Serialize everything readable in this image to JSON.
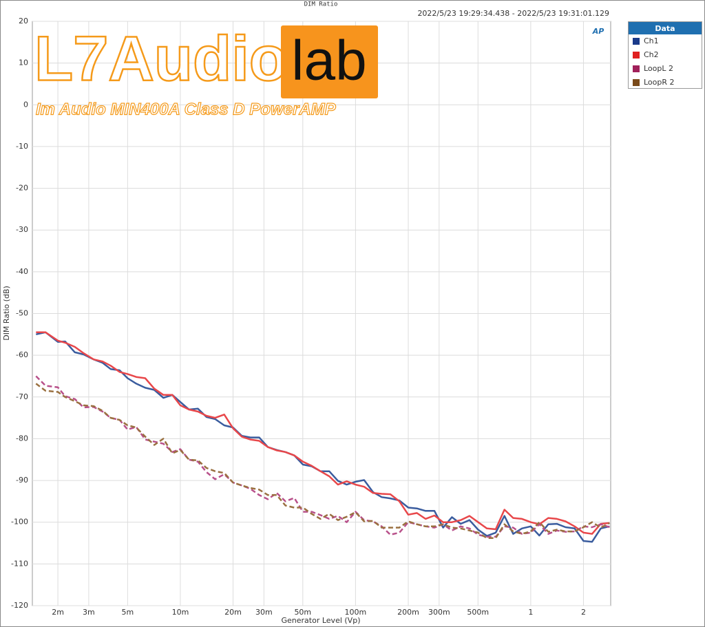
{
  "chart_data": {
    "type": "line",
    "title": "DIM Ratio",
    "subtitle": "2022/5/23 19:29:34.438 - 2022/5/23 19:31:01.129",
    "x_label": "Generator Level (Vp)",
    "y_label": "DIM Ratio (dB)",
    "legend_title": "Data",
    "legend_position": "outside-right",
    "annotations": [
      "L7Audio",
      "lab",
      "Im Audio MIN400A Class D PowerAMP",
      "AP"
    ],
    "xscale": "log",
    "grid": true,
    "xlim": [
      0.00143,
      2.86
    ],
    "ylim": [
      -120,
      20
    ],
    "xticks": [
      {
        "value": 0.002,
        "label": "2m"
      },
      {
        "value": 0.003,
        "label": "3m"
      },
      {
        "value": 0.005,
        "label": "5m"
      },
      {
        "value": 0.01,
        "label": "10m"
      },
      {
        "value": 0.02,
        "label": "20m"
      },
      {
        "value": 0.03,
        "label": "30m"
      },
      {
        "value": 0.05,
        "label": "50m"
      },
      {
        "value": 0.1,
        "label": "100m"
      },
      {
        "value": 0.2,
        "label": "200m"
      },
      {
        "value": 0.3,
        "label": "300m"
      },
      {
        "value": 0.5,
        "label": "500m"
      },
      1,
      2
    ],
    "yticks": [
      20,
      10,
      0,
      -10,
      -20,
      -30,
      -40,
      -50,
      -60,
      -70,
      -80,
      -90,
      -100,
      -110,
      -120
    ],
    "x": [
      0.0015,
      0.0017,
      0.002,
      0.0022,
      0.0025,
      0.0028,
      0.0032,
      0.0036,
      0.004,
      0.0045,
      0.005,
      0.0056,
      0.0063,
      0.0071,
      0.008,
      0.009,
      0.01,
      0.0112,
      0.0126,
      0.0141,
      0.0158,
      0.0178,
      0.02,
      0.0224,
      0.0251,
      0.0282,
      0.0316,
      0.0355,
      0.0398,
      0.0447,
      0.0501,
      0.0562,
      0.0631,
      0.0708,
      0.0794,
      0.0891,
      0.1,
      0.112,
      0.126,
      0.141,
      0.158,
      0.178,
      0.2,
      0.224,
      0.251,
      0.282,
      0.316,
      0.355,
      0.398,
      0.447,
      0.501,
      0.562,
      0.631,
      0.708,
      0.794,
      0.891,
      1,
      1.12,
      1.26,
      1.41,
      1.58,
      1.78,
      2,
      2.24,
      2.51,
      2.82
    ],
    "series": [
      {
        "name": "Ch1",
        "color": "#3a5c9e",
        "legend_color": "#1a3a8a",
        "style": "solid",
        "values": [
          -55,
          -54.5,
          -56.8,
          -56.7,
          -59.3,
          -59.8,
          -61,
          -61.8,
          -63.3,
          -63.6,
          -65.5,
          -66.8,
          -67.8,
          -68.3,
          -70.2,
          -69.5,
          -71.2,
          -73,
          -72.8,
          -74.8,
          -75.3,
          -76.8,
          -77.3,
          -79.3,
          -79.7,
          -79.7,
          -82,
          -82.7,
          -83.2,
          -84,
          -86.2,
          -86.6,
          -87.8,
          -87.8,
          -90.1,
          -91,
          -90.3,
          -89.9,
          -92.8,
          -94,
          -94.3,
          -94.8,
          -96.5,
          -96.7,
          -97.3,
          -97.3,
          -101.3,
          -98.8,
          -100.4,
          -99.5,
          -101.8,
          -103.3,
          -102.5,
          -98.5,
          -102.8,
          -101.5,
          -101,
          -103.2,
          -100.5,
          -100.4,
          -101.2,
          -101.5,
          -104.5,
          -104.7,
          -101.5,
          -101
        ]
      },
      {
        "name": "Ch2",
        "color": "#e8474a",
        "legend_color": "#e02020",
        "style": "solid",
        "values": [
          -54.5,
          -54.5,
          -56.5,
          -57,
          -58,
          -59.5,
          -61,
          -61.5,
          -62.5,
          -64,
          -64.5,
          -65.2,
          -65.5,
          -68,
          -69.5,
          -69.5,
          -72,
          -73,
          -73.5,
          -74.5,
          -75,
          -74.2,
          -77.5,
          -79.5,
          -80.2,
          -80.5,
          -82,
          -82.8,
          -83.2,
          -84,
          -85.5,
          -86.5,
          -87.8,
          -89,
          -91,
          -90.2,
          -91,
          -91.5,
          -93,
          -93.2,
          -93.3,
          -95,
          -98.2,
          -97.8,
          -99.2,
          -98.4,
          -100,
          -100,
          -99.5,
          -98.5,
          -100,
          -101.5,
          -101.7,
          -97,
          -99,
          -99.2,
          -100,
          -100.5,
          -99,
          -99.2,
          -99.8,
          -101,
          -102.5,
          -102.8,
          -100.4,
          -100.2
        ]
      },
      {
        "name": "LoopL 2",
        "color": "#b8508a",
        "legend_color": "#a0205a",
        "style": "dashed",
        "values": [
          -65,
          -67.3,
          -67.7,
          -69.8,
          -70.5,
          -72.5,
          -72.4,
          -73.5,
          -75,
          -75.5,
          -77.8,
          -77.2,
          -80.2,
          -80.7,
          -81.2,
          -83.2,
          -82.5,
          -85,
          -85.5,
          -88,
          -89.7,
          -88.5,
          -90.5,
          -91.2,
          -92,
          -93.5,
          -94.5,
          -93,
          -95,
          -94.2,
          -97.5,
          -97.5,
          -98.3,
          -99.2,
          -98.5,
          -100,
          -97.5,
          -99.5,
          -99.8,
          -101,
          -103,
          -102.5,
          -100,
          -100.5,
          -101,
          -101.3,
          -100.5,
          -102,
          -101,
          -101.5,
          -103,
          -103.5,
          -103.5,
          -101,
          -101.3,
          -102.8,
          -102.5,
          -100.5,
          -102.8,
          -102,
          -102.3,
          -102.2,
          -101,
          -101.2,
          -100.5,
          -101.2
        ]
      },
      {
        "name": "LoopR 2",
        "color": "#9a7040",
        "legend_color": "#7a4a1a",
        "style": "dashed",
        "values": [
          -66.8,
          -68.5,
          -68.8,
          -70,
          -71,
          -72,
          -72.2,
          -73.3,
          -75,
          -75.5,
          -76.8,
          -77.3,
          -79.5,
          -81.5,
          -80,
          -83.5,
          -82.7,
          -85,
          -85.2,
          -87,
          -87.8,
          -88.2,
          -90.5,
          -91.2,
          -91.8,
          -92.2,
          -93.5,
          -93.5,
          -96,
          -96.5,
          -96.5,
          -98,
          -99.2,
          -98,
          -99.5,
          -98.7,
          -97.6,
          -99.8,
          -99.7,
          -101.3,
          -101.3,
          -101.3,
          -99.8,
          -100.5,
          -101,
          -101,
          -100.5,
          -101.3,
          -101.5,
          -102,
          -102.5,
          -103.8,
          -103.8,
          -100.5,
          -102.2,
          -102.8,
          -102.2,
          -100,
          -102.3,
          -101.8,
          -102.2,
          -102.2,
          -101.2,
          -100,
          -101.3,
          -100.2
        ]
      }
    ]
  }
}
